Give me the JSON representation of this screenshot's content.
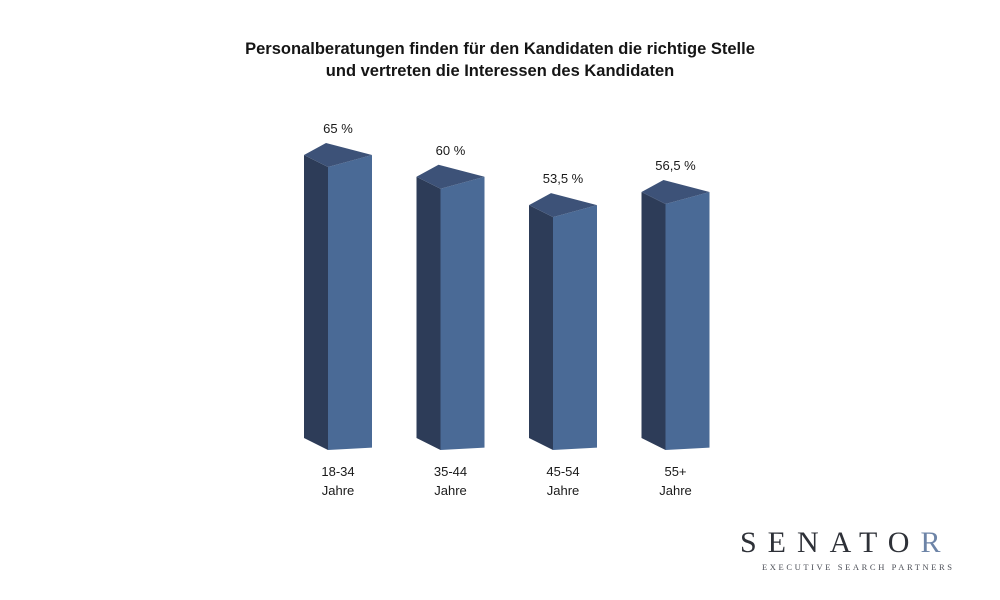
{
  "chart_data": {
    "type": "bar",
    "title_lines": [
      "Personalberatungen finden für den Kandidaten die richtige Stelle",
      "und vertreten die Interessen des Kandidaten"
    ],
    "categories": [
      [
        "18-34",
        "Jahre"
      ],
      [
        "35-44",
        "Jahre"
      ],
      [
        "45-54",
        "Jahre"
      ],
      [
        "55+",
        "Jahre"
      ]
    ],
    "values": [
      65,
      60,
      53.5,
      56.5
    ],
    "data_labels": [
      "65 %",
      "60 %",
      "53,5 %",
      "56,5 %"
    ],
    "unit": "%",
    "grid": false,
    "legend": "none",
    "colors": {
      "front": "#4a6a96",
      "side": "#2d3c58",
      "top": "#3d5278"
    }
  },
  "logo": {
    "main": "SENATO",
    "accent": "R",
    "tagline": "EXECUTIVE SEARCH PARTNERS"
  }
}
